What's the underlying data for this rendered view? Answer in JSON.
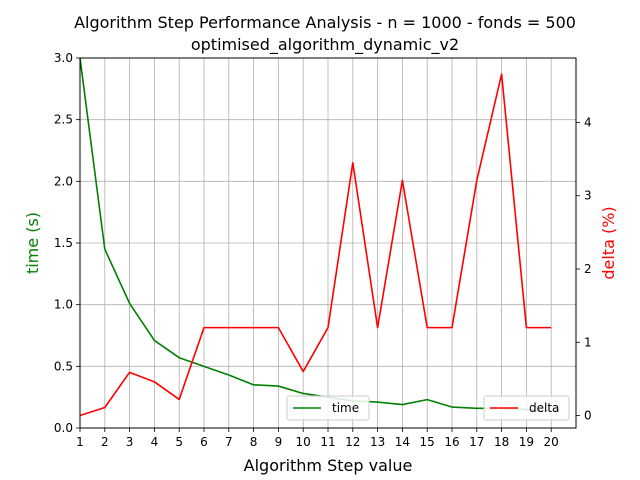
{
  "chart_data": {
    "type": "line",
    "title": "Algorithm Step Performance Analysis - n = 1000 - fonds = 500",
    "subtitle": "optimised_algorithm_dynamic_v2",
    "xlabel": "Algorithm Step value",
    "ylabel_left": "time (s)",
    "ylabel_right": "delta (%)",
    "x": [
      1,
      2,
      3,
      4,
      5,
      6,
      7,
      8,
      9,
      10,
      11,
      12,
      13,
      14,
      15,
      16,
      17,
      18,
      19,
      20
    ],
    "xlim": [
      1,
      21
    ],
    "ylim_left": [
      0,
      3.0
    ],
    "ylim_right": [
      -0.17,
      4.88
    ],
    "x_ticks": [
      "1",
      "2",
      "3",
      "4",
      "5",
      "6",
      "7",
      "8",
      "9",
      "10",
      "11",
      "12",
      "13",
      "14",
      "15",
      "16",
      "17",
      "18",
      "19",
      "20"
    ],
    "y_ticks_left": [
      "0.0",
      "0.5",
      "1.0",
      "1.5",
      "2.0",
      "2.5",
      "3.0"
    ],
    "y_ticks_left_values": [
      0,
      0.5,
      1.0,
      1.5,
      2.0,
      2.5,
      3.0
    ],
    "y_ticks_right": [
      "0",
      "1",
      "2",
      "3",
      "4"
    ],
    "y_ticks_right_values": [
      0,
      1,
      2,
      3,
      4
    ],
    "grid": true,
    "series": [
      {
        "name": "time",
        "axis": "left",
        "color": "#008000",
        "values": [
          3.0,
          1.45,
          1.01,
          0.71,
          0.57,
          0.5,
          0.43,
          0.35,
          0.34,
          0.28,
          0.25,
          0.22,
          0.21,
          0.19,
          0.23,
          0.17,
          0.16,
          0.16,
          0.15,
          0.14
        ]
      },
      {
        "name": "delta",
        "axis": "right",
        "color": "#ff0000",
        "values": [
          0.0,
          0.11,
          0.59,
          0.46,
          0.22,
          1.2,
          1.2,
          1.2,
          1.2,
          0.6,
          1.2,
          3.45,
          1.2,
          3.21,
          1.2,
          1.2,
          3.21,
          4.66,
          1.2,
          1.2
        ]
      }
    ],
    "legends": [
      {
        "series": "time",
        "placement": "lower-center"
      },
      {
        "series": "delta",
        "placement": "lower-right"
      }
    ]
  }
}
